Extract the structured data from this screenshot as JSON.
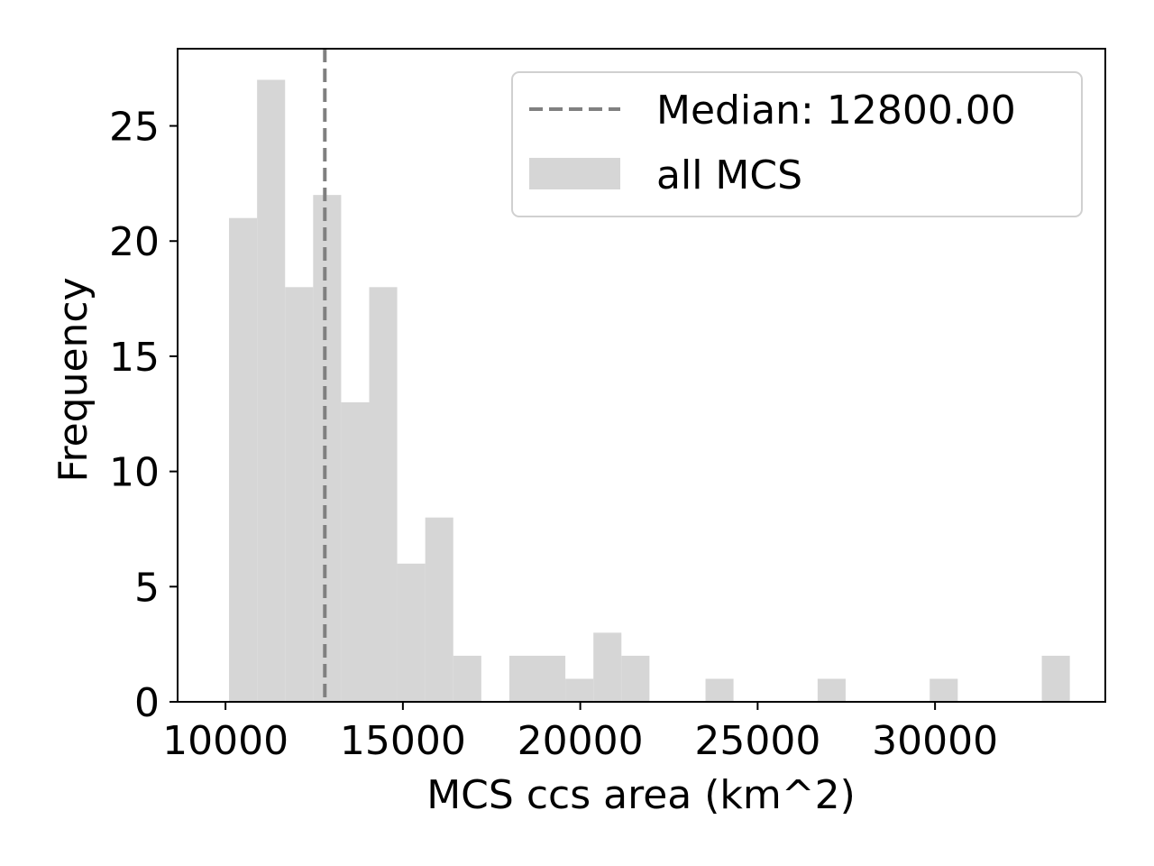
{
  "chart_data": {
    "type": "bar",
    "subtype": "histogram",
    "xlabel": "MCS ccs area (km^2)",
    "ylabel": "Frequency",
    "xlim": [
      8650,
      34800
    ],
    "ylim": [
      0,
      28.35
    ],
    "xticks": [
      10000,
      15000,
      20000,
      25000,
      30000
    ],
    "yticks": [
      0,
      5,
      10,
      15,
      20,
      25
    ],
    "grid": false,
    "bar_color": "#d6d6d6",
    "median_color": "#808080",
    "bins": [
      {
        "x0": 10100,
        "x1": 10890,
        "count": 21
      },
      {
        "x0": 10890,
        "x1": 11680,
        "count": 27
      },
      {
        "x0": 11680,
        "x1": 12470,
        "count": 18
      },
      {
        "x0": 12470,
        "x1": 13260,
        "count": 22
      },
      {
        "x0": 13260,
        "x1": 14050,
        "count": 13
      },
      {
        "x0": 14050,
        "x1": 14840,
        "count": 18
      },
      {
        "x0": 14840,
        "x1": 15630,
        "count": 6
      },
      {
        "x0": 15630,
        "x1": 16420,
        "count": 8
      },
      {
        "x0": 16420,
        "x1": 17210,
        "count": 2
      },
      {
        "x0": 17210,
        "x1": 18000,
        "count": 0
      },
      {
        "x0": 18000,
        "x1": 18790,
        "count": 2
      },
      {
        "x0": 18790,
        "x1": 19580,
        "count": 2
      },
      {
        "x0": 19580,
        "x1": 20370,
        "count": 1
      },
      {
        "x0": 20370,
        "x1": 21160,
        "count": 3
      },
      {
        "x0": 21160,
        "x1": 21950,
        "count": 2
      },
      {
        "x0": 21950,
        "x1": 22740,
        "count": 0
      },
      {
        "x0": 22740,
        "x1": 23530,
        "count": 0
      },
      {
        "x0": 23530,
        "x1": 24320,
        "count": 1
      },
      {
        "x0": 24320,
        "x1": 25110,
        "count": 0
      },
      {
        "x0": 25110,
        "x1": 25900,
        "count": 0
      },
      {
        "x0": 25900,
        "x1": 26690,
        "count": 0
      },
      {
        "x0": 26690,
        "x1": 27480,
        "count": 1
      },
      {
        "x0": 27480,
        "x1": 28270,
        "count": 0
      },
      {
        "x0": 28270,
        "x1": 29060,
        "count": 0
      },
      {
        "x0": 29060,
        "x1": 29850,
        "count": 0
      },
      {
        "x0": 29850,
        "x1": 30640,
        "count": 1
      },
      {
        "x0": 30640,
        "x1": 31430,
        "count": 0
      },
      {
        "x0": 31430,
        "x1": 32220,
        "count": 0
      },
      {
        "x0": 32220,
        "x1": 33010,
        "count": 0
      },
      {
        "x0": 33010,
        "x1": 33800,
        "count": 2
      }
    ],
    "median": 12800,
    "legend": {
      "position": "upper right",
      "entries": [
        {
          "label": "Median: 12800.00",
          "kind": "dashed-line"
        },
        {
          "label": "all MCS",
          "kind": "patch"
        }
      ]
    }
  }
}
